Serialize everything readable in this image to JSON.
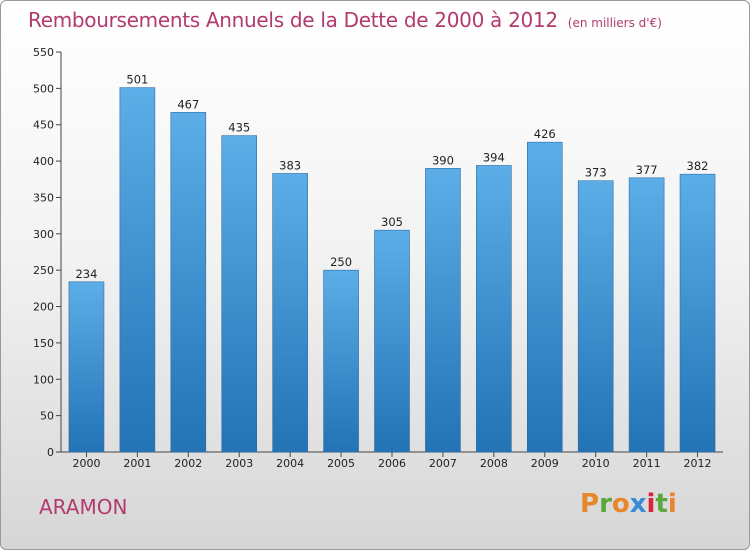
{
  "title_main": "Remboursements Annuels de la Dette de 2000 à 2012",
  "title_unit": "(en milliers d'€)",
  "town": "ARAMON",
  "logo": {
    "text": "Proxiti",
    "colors": [
      "#e8862b",
      "#5aa83c",
      "#e8862b",
      "#3a8ad8",
      "#d9243a",
      "#5aa83c",
      "#e8862b"
    ]
  },
  "colors": {
    "title": "#b23a6e",
    "bar_top": "#5dade8",
    "bar_bottom": "#2373b5"
  },
  "chart_data": {
    "type": "bar",
    "title": "Remboursements Annuels de la Dette de 2000 à 2012",
    "ylabel": "(en milliers d'€)",
    "xlabel": "",
    "categories": [
      "2000",
      "2001",
      "2002",
      "2003",
      "2004",
      "2005",
      "2006",
      "2007",
      "2008",
      "2009",
      "2010",
      "2011",
      "2012"
    ],
    "values": [
      234,
      501,
      467,
      435,
      383,
      250,
      305,
      390,
      394,
      426,
      373,
      377,
      382
    ],
    "ylim": [
      0,
      550
    ],
    "yticks": [
      0,
      50,
      100,
      150,
      200,
      250,
      300,
      350,
      400,
      450,
      500,
      550
    ],
    "grid": false,
    "legend": "none"
  }
}
